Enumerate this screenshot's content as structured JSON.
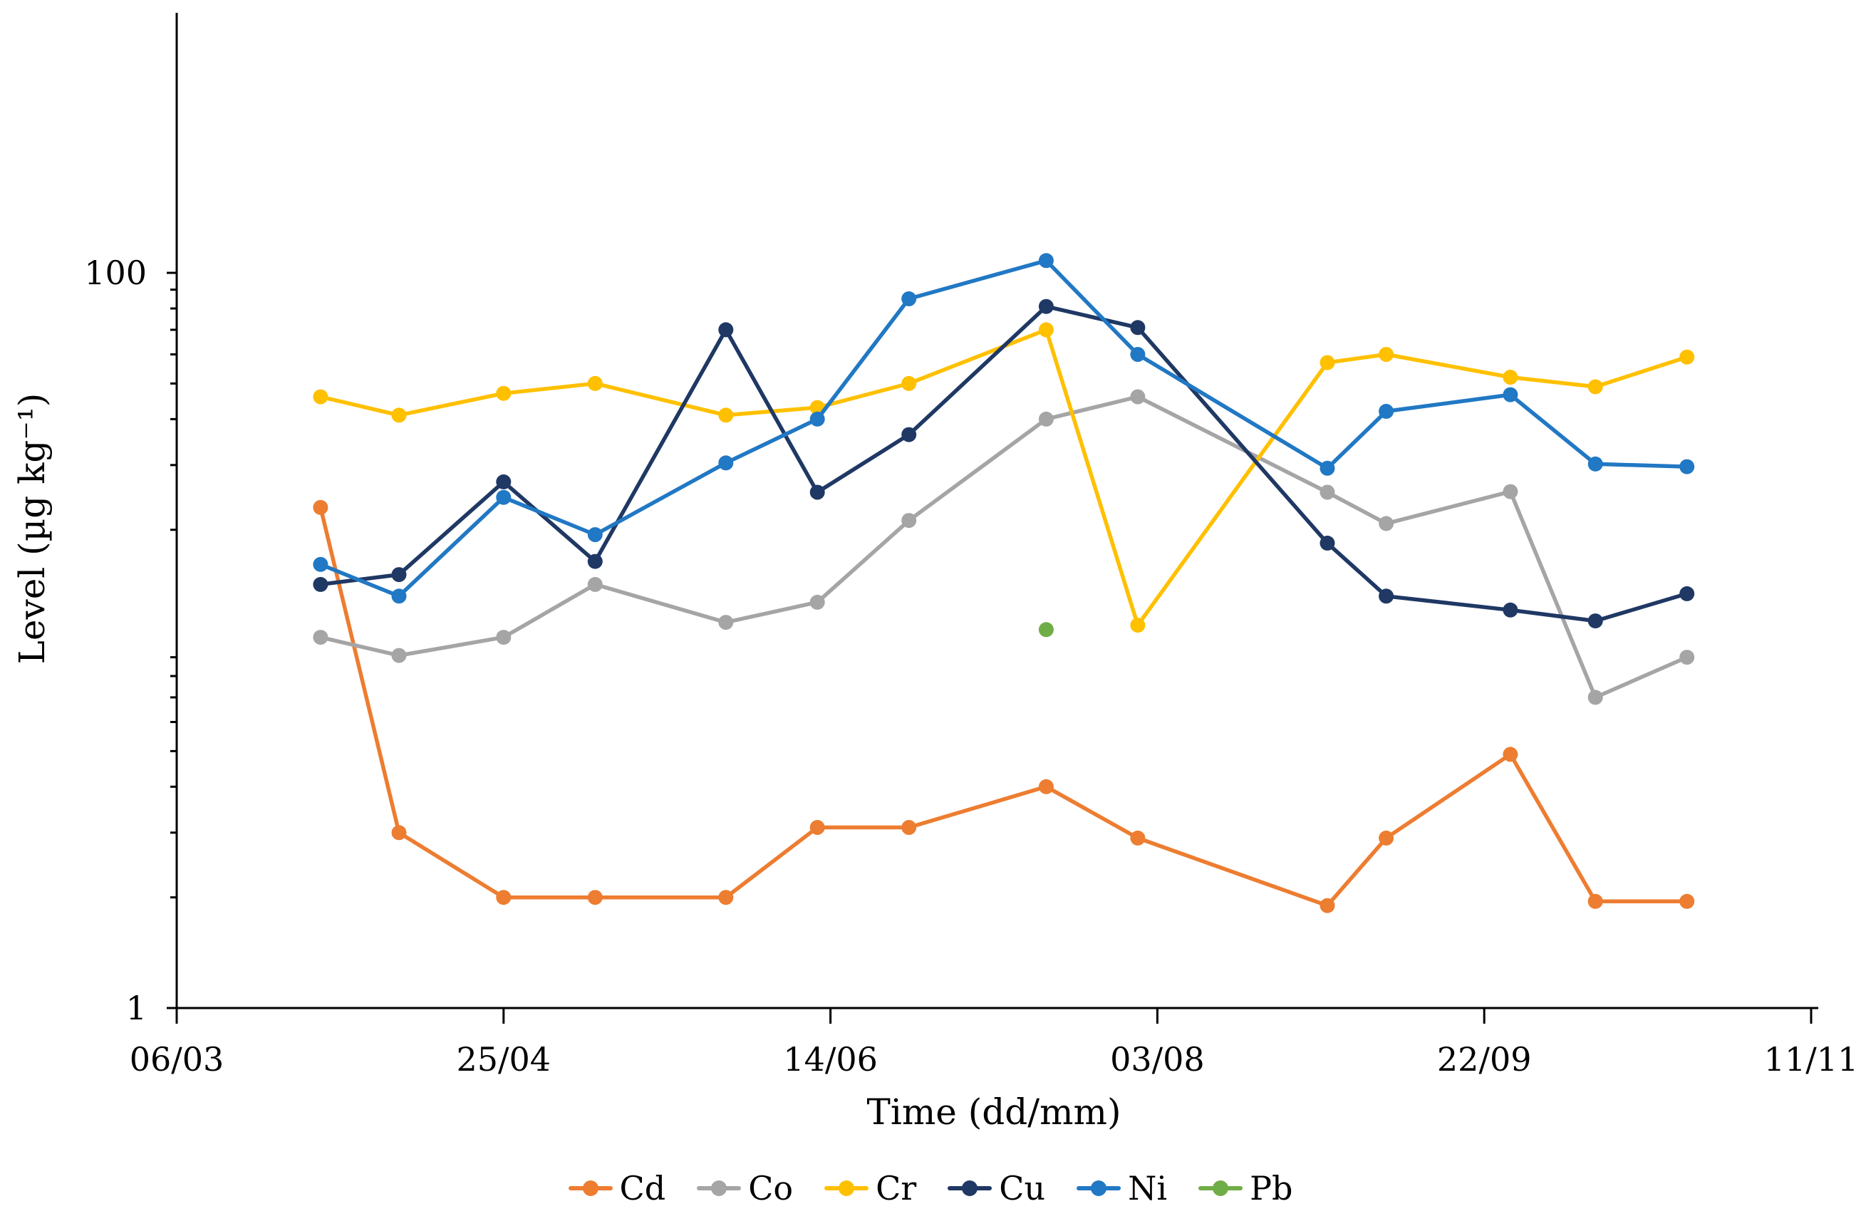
{
  "chart_data": {
    "type": "line",
    "title": "",
    "xlabel": "Time (dd/mm)",
    "ylabel": "Level (µg kg⁻¹)",
    "y_scale": "log",
    "ylim": [
      1,
      500
    ],
    "grid": false,
    "legend_position": "bottom",
    "y_major_ticks": [
      {
        "value": 1,
        "label": "1"
      },
      {
        "value": 100,
        "label": "100"
      }
    ],
    "y_minor_ticks": [
      2,
      3,
      4,
      5,
      6,
      7,
      8,
      9,
      20,
      30,
      40,
      50,
      60,
      70,
      80,
      90
    ],
    "x_tick_labels": [
      "06/03",
      "25/04",
      "14/06",
      "03/08",
      "22/09",
      "11/11"
    ],
    "x_tick_interval_days": 50,
    "x": [
      "28/03",
      "09/04",
      "25/04",
      "09/05",
      "29/05",
      "12/06",
      "26/06",
      "17/07",
      "31/07",
      "29/08",
      "07/09",
      "26/09",
      "09/10",
      "23/10"
    ],
    "series": [
      {
        "name": "Cd",
        "color": "#ED7D31",
        "x": [
          "28/03",
          "09/04",
          "25/04",
          "09/05",
          "29/05",
          "12/06",
          "26/06",
          "17/07",
          "31/07",
          "29/08",
          "07/09",
          "26/09",
          "09/10",
          "23/10"
        ],
        "values": [
          23,
          3.0,
          2.0,
          2.0,
          2.0,
          3.1,
          3.1,
          4.0,
          2.9,
          1.9,
          2.9,
          4.9,
          1.95,
          1.95
        ]
      },
      {
        "name": "Co",
        "color": "#A5A5A5",
        "x": [
          "28/03",
          "09/04",
          "25/04",
          "09/05",
          "29/05",
          "12/06",
          "26/06",
          "17/07",
          "31/07",
          "29/08",
          "07/09",
          "26/09",
          "09/10",
          "23/10"
        ],
        "values": [
          10.2,
          9.1,
          10.2,
          14.2,
          11.2,
          12.7,
          21.2,
          40,
          46,
          25.3,
          20.8,
          25.4,
          7.0,
          9.0
        ]
      },
      {
        "name": "Cr",
        "color": "#FFC000",
        "x": [
          "28/03",
          "09/04",
          "25/04",
          "09/05",
          "29/05",
          "12/06",
          "26/06",
          "17/07",
          "31/07",
          "29/08",
          "07/09",
          "26/09",
          "09/10",
          "23/10"
        ],
        "values": [
          46,
          41,
          47,
          50,
          41,
          43,
          50,
          70,
          11,
          57,
          60,
          52,
          49,
          59
        ]
      },
      {
        "name": "Cu",
        "color": "#1F3864",
        "x": [
          "28/03",
          "09/04",
          "25/04",
          "09/05",
          "29/05",
          "12/06",
          "26/06",
          "17/07",
          "31/07",
          "29/08",
          "07/09",
          "26/09",
          "09/10",
          "23/10"
        ],
        "values": [
          14.2,
          15.1,
          27,
          16.4,
          70,
          25.3,
          36.3,
          81,
          71,
          18.4,
          13.2,
          12.1,
          11.3,
          13.4
        ]
      },
      {
        "name": "Ni",
        "color": "#2178C4",
        "x": [
          "28/03",
          "09/04",
          "25/04",
          "09/05",
          "29/05",
          "12/06",
          "26/06",
          "17/07",
          "31/07",
          "29/08",
          "07/09",
          "26/09",
          "09/10",
          "23/10"
        ],
        "values": [
          16.1,
          13.2,
          24.5,
          19.4,
          30.4,
          40,
          85,
          108,
          60,
          29.4,
          42,
          46.6,
          30.2,
          29.7
        ]
      },
      {
        "name": "Pb",
        "color": "#70AD47",
        "x": [
          "17/07"
        ],
        "values": [
          10.7
        ]
      }
    ]
  },
  "style": {
    "axis_color": "#000000",
    "marker_radius": 10.5,
    "line_width": 5.5
  }
}
